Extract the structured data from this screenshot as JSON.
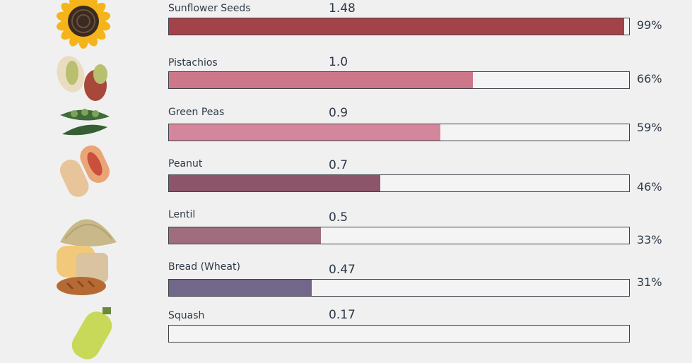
{
  "chart_data": {
    "type": "bar",
    "orientation": "horizontal",
    "categories": [
      "Sunflower Seeds",
      "Pistachios",
      "Green Peas",
      "Peanut",
      "Lentil",
      "Bread (Wheat)",
      "Squash"
    ],
    "values": [
      1.48,
      1.0,
      0.9,
      0.7,
      0.5,
      0.47,
      0.17
    ],
    "value_labels": [
      "1.48",
      "1.0",
      "0.9",
      "0.7",
      "0.5",
      "0.47",
      "0.17"
    ],
    "percent_values": [
      99,
      66,
      59,
      46,
      33,
      31,
      null
    ],
    "percent_labels": [
      "99%",
      "66%",
      "59%",
      "46%",
      "33%",
      "31%",
      ""
    ],
    "colors": [
      "#a4424a",
      "#cd788a",
      "#d4879c",
      "#8c5569",
      "#a06d7e",
      "#72668a",
      "#9a8aa0"
    ],
    "icons": [
      "sunflower-icon",
      "pistachio-icon",
      "green-peas-icon",
      "peanut-icon",
      "lentil-icon",
      "bread-icon",
      "squash-icon"
    ],
    "xlim": [
      0,
      100
    ]
  }
}
